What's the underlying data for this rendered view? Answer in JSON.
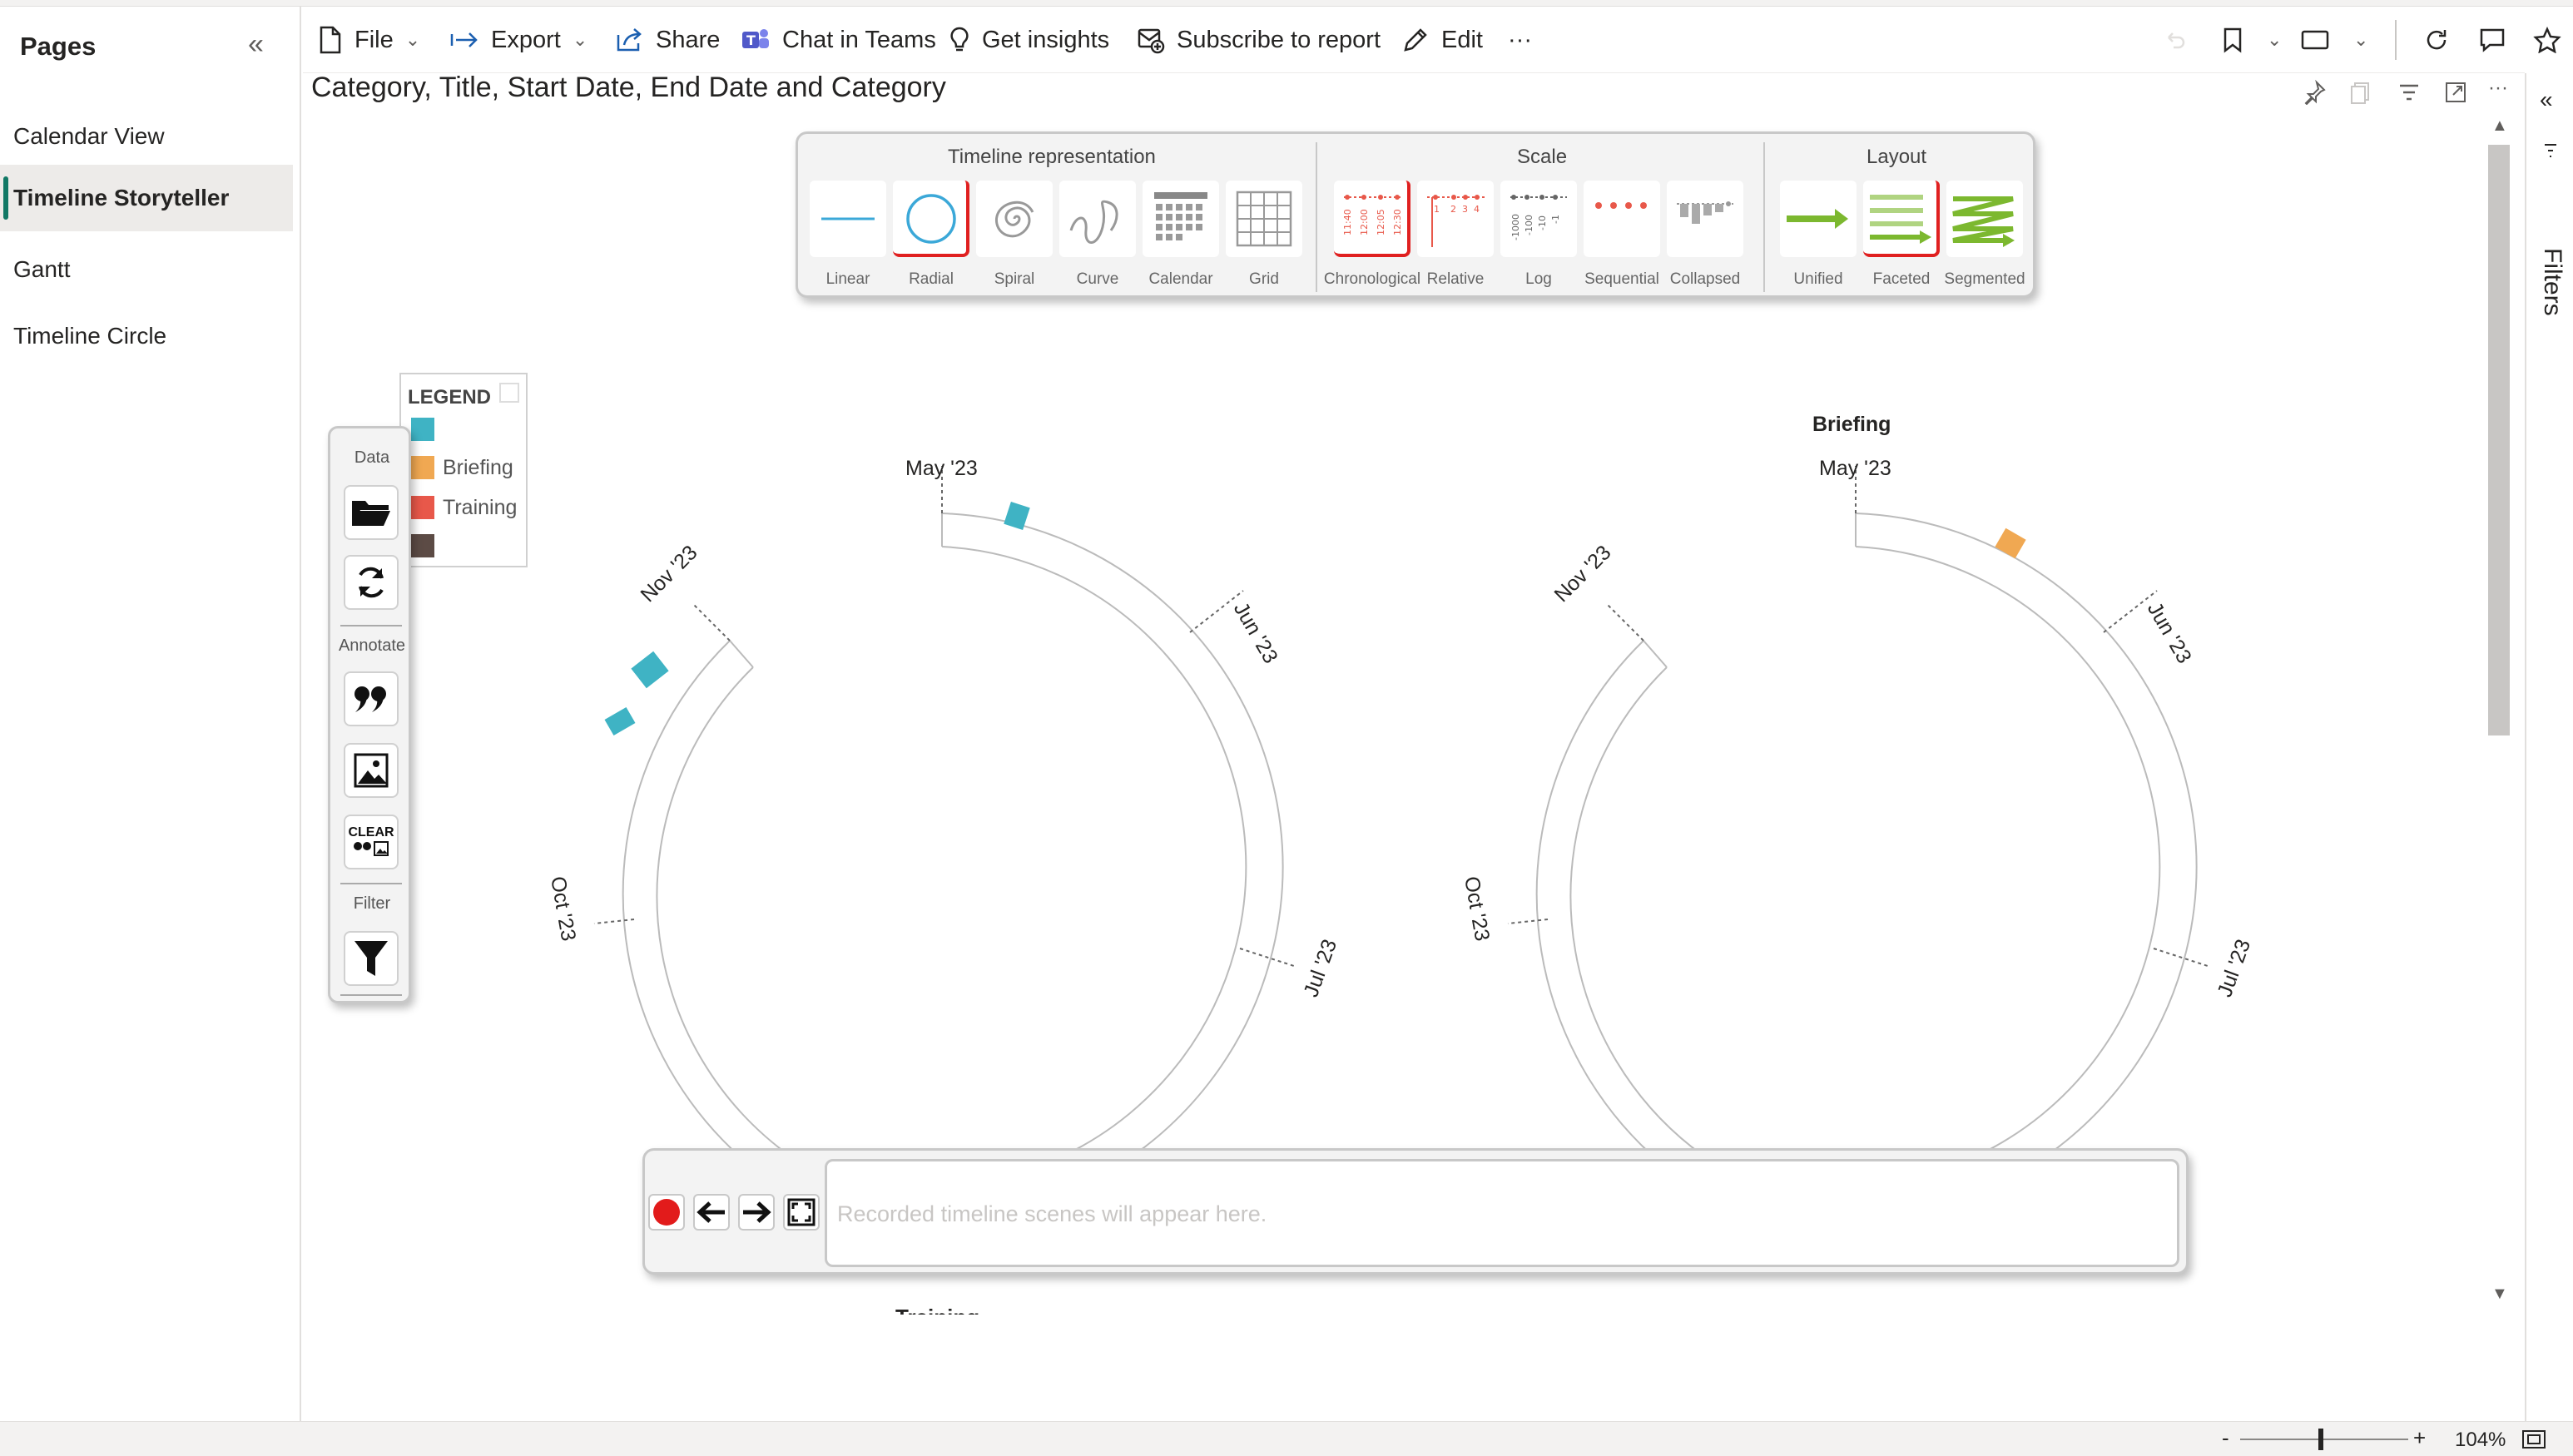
{
  "pages": {
    "title": "Pages",
    "items": [
      {
        "label": "Calendar View"
      },
      {
        "label": "Timeline Storyteller"
      },
      {
        "label": "Gantt"
      },
      {
        "label": "Timeline Circle"
      }
    ]
  },
  "toolbar": {
    "file": "File",
    "export": "Export",
    "share": "Share",
    "chat_in_teams": "Chat in Teams",
    "get_insights": "Get insights",
    "subscribe": "Subscribe to report",
    "edit": "Edit",
    "more": "···"
  },
  "visual": {
    "title": "Category, Title, Start Date, End Date and Category"
  },
  "filters": {
    "label": "Filters"
  },
  "representation_panel": {
    "groups": {
      "timeline": "Timeline representation",
      "scale": "Scale",
      "layout": "Layout"
    },
    "timeline_buttons": [
      "Linear",
      "Radial",
      "Spiral",
      "Curve",
      "Calendar",
      "Grid"
    ],
    "scale_buttons": [
      "Chronological",
      "Relative",
      "Log",
      "Sequential",
      "Collapsed"
    ],
    "layout_buttons": [
      "Unified",
      "Faceted",
      "Segmented"
    ],
    "active": {
      "timeline": "Radial",
      "scale": "Chronological",
      "layout": "Faceted"
    },
    "chronological_ticks": [
      "11:40",
      "12:00",
      "12:05",
      "12:30"
    ],
    "relative_ticks": [
      "1",
      "2",
      "3",
      "4"
    ],
    "log_ticks": [
      "-1000",
      "-100",
      "-10",
      "-1"
    ]
  },
  "tools": {
    "data": "Data",
    "annotate": "Annotate",
    "clear": "CLEAR",
    "filter": "Filter"
  },
  "legend": {
    "title": "LEGEND",
    "items": [
      {
        "label": "",
        "color": "#3fb3c4"
      },
      {
        "label": "Briefing",
        "color": "#f0a852"
      },
      {
        "label": "Training",
        "color": "#e8584a"
      },
      {
        "label": "",
        "color": "#5c4b45"
      }
    ]
  },
  "timeline": {
    "facets": [
      {
        "title": "",
        "month_labels": [
          "May '23",
          "Jun '23",
          "Jul '23",
          "Oct '23",
          "Nov '23"
        ],
        "event_color": "#3fb3c4"
      },
      {
        "title": "Briefing",
        "month_labels": [
          "May '23",
          "Jun '23",
          "Jul '23",
          "Oct '23",
          "Nov '23"
        ],
        "event_color": "#f0a852"
      }
    ],
    "partial_label": "Training"
  },
  "recorder": {
    "placeholder": "Recorded timeline scenes will appear here."
  },
  "status": {
    "zoom": "104%",
    "zoom_minus": "-",
    "zoom_plus": "+"
  }
}
